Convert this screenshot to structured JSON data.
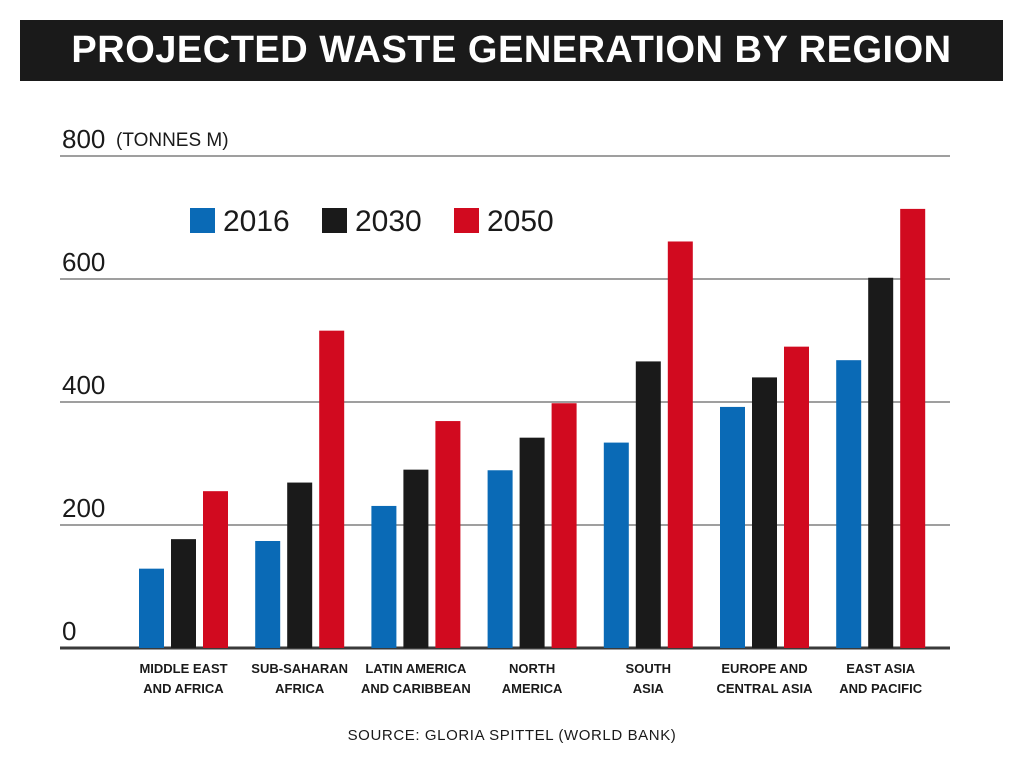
{
  "title": "PROJECTED WASTE GENERATION BY REGION",
  "source": "SOURCE: GLORIA SPITTEL (WORLD BANK)",
  "chart_data": {
    "type": "bar",
    "title": "PROJECTED WASTE GENERATION BY REGION",
    "ylabel": "(TONNES M)",
    "xlabel": "",
    "ylim": [
      0,
      800
    ],
    "yticks": [
      "0",
      "200",
      "400",
      "600",
      "800"
    ],
    "categories": [
      [
        "MIDDLE EAST",
        "AND AFRICA"
      ],
      [
        "SUB-SAHARAN",
        "AFRICA"
      ],
      [
        "LATIN AMERICA",
        "AND CARIBBEAN"
      ],
      [
        "NORTH",
        "AMERICA"
      ],
      [
        "SOUTH",
        "ASIA"
      ],
      [
        "EUROPE AND",
        "CENTRAL ASIA"
      ],
      [
        "EAST ASIA",
        "AND PACIFIC"
      ]
    ],
    "series": [
      {
        "name": "2016",
        "color": "#0a6ab6",
        "values": [
          129,
          174,
          231,
          289,
          334,
          392,
          468
        ]
      },
      {
        "name": "2030",
        "color": "#1a1a1a",
        "values": [
          177,
          269,
          290,
          342,
          466,
          440,
          602
        ]
      },
      {
        "name": "2050",
        "color": "#d10a1f",
        "values": [
          255,
          516,
          369,
          398,
          661,
          490,
          714
        ]
      }
    ],
    "grid": true,
    "legend": "top-left"
  }
}
